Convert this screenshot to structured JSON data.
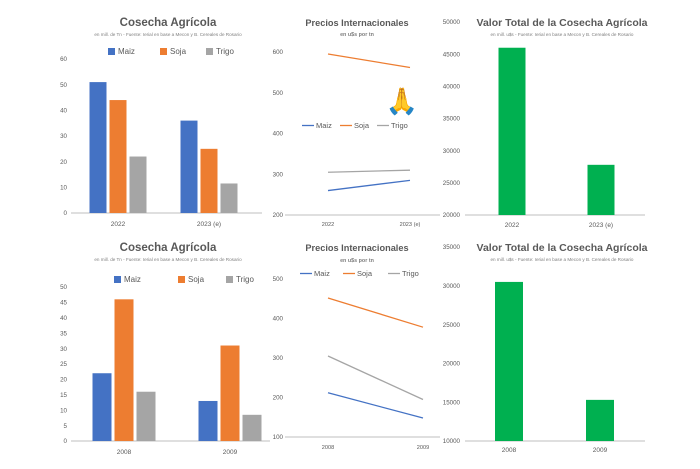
{
  "colors": {
    "maiz": "#4472c4",
    "soja": "#ed7d31",
    "trigo": "#a5a5a5",
    "valor": "#00b050"
  },
  "emoji": "🙏",
  "chart_data": [
    {
      "type": "bar",
      "title": "Cosecha Agrícola",
      "subtitle": "en mill. de Tn - Fuente: Ierial en base a Mecon y B. Cereales de Rosario",
      "categories": [
        "2022",
        "2023 (e)"
      ],
      "series": [
        {
          "name": "Maiz",
          "values": [
            51,
            36
          ]
        },
        {
          "name": "Soja",
          "values": [
            44,
            25
          ]
        },
        {
          "name": "Trigo",
          "values": [
            22,
            11.5
          ]
        }
      ],
      "ylim": [
        0,
        60
      ],
      "yticks": [
        "0",
        "10",
        "20",
        "30",
        "40",
        "50",
        "60"
      ],
      "grid": false,
      "legend": "top"
    },
    {
      "type": "line",
      "title": "Precios Internacionales",
      "subtitle": "en u$s por tn",
      "categories": [
        "2022",
        "2023 (e)"
      ],
      "series": [
        {
          "name": "Maiz",
          "values": [
            260,
            285
          ]
        },
        {
          "name": "Soja",
          "values": [
            595,
            562
          ]
        },
        {
          "name": "Trigo",
          "values": [
            305,
            310
          ]
        }
      ],
      "ylim": [
        200,
        600
      ],
      "yticks": [
        "200",
        "300",
        "400",
        "500",
        "600"
      ],
      "grid": false,
      "legend": "middle"
    },
    {
      "type": "bar",
      "title": "Valor Total de la Cosecha Agrícola",
      "subtitle": "en mill. u$s - Fuente: Ierial en base a Mecon y B. Cereales de Rosario",
      "categories": [
        "2022",
        "2023 (e)"
      ],
      "series": [
        {
          "values": [
            46000,
            27800
          ]
        }
      ],
      "ylim": [
        20000,
        50000
      ],
      "yticks": [
        "20000",
        "25000",
        "30000",
        "35000",
        "40000",
        "45000",
        "50000"
      ],
      "grid": false,
      "legend": "none"
    },
    {
      "type": "bar",
      "title": "Cosecha Agrícola",
      "subtitle": "en mill. de Tn - Fuente: Ierial en base a Mecon y B. Cereales de Rosario",
      "categories": [
        "2008",
        "2009"
      ],
      "series": [
        {
          "name": "Maiz",
          "values": [
            22,
            13
          ]
        },
        {
          "name": "Soja",
          "values": [
            46,
            31
          ]
        },
        {
          "name": "Trigo",
          "values": [
            16,
            8.5
          ]
        }
      ],
      "ylim": [
        0,
        50
      ],
      "yticks": [
        "0",
        "5",
        "10",
        "15",
        "20",
        "25",
        "30",
        "35",
        "40",
        "45",
        "50"
      ],
      "grid": false,
      "legend": "top"
    },
    {
      "type": "line",
      "title": "Precios Internacionales",
      "subtitle": "en u$s por tn",
      "categories": [
        "2008",
        "2009"
      ],
      "series": [
        {
          "name": "Maiz",
          "values": [
            212,
            148
          ]
        },
        {
          "name": "Soja",
          "values": [
            452,
            378
          ]
        },
        {
          "name": "Trigo",
          "values": [
            305,
            195
          ]
        }
      ],
      "ylim": [
        100,
        500
      ],
      "yticks": [
        "100",
        "200",
        "300",
        "400",
        "500"
      ],
      "grid": false,
      "legend": "top"
    },
    {
      "type": "bar",
      "title": "Valor Total de la Cosecha Agrícola",
      "subtitle": "en mill. u$s - Fuente: Ierial en base a Mecon y B. Cereales de Rosario",
      "categories": [
        "2008",
        "2009"
      ],
      "series": [
        {
          "values": [
            30500,
            15300
          ]
        }
      ],
      "ylim": [
        10000,
        35000
      ],
      "yticks": [
        "10000",
        "15000",
        "20000",
        "25000",
        "30000",
        "35000"
      ],
      "grid": false,
      "legend": "none"
    }
  ]
}
